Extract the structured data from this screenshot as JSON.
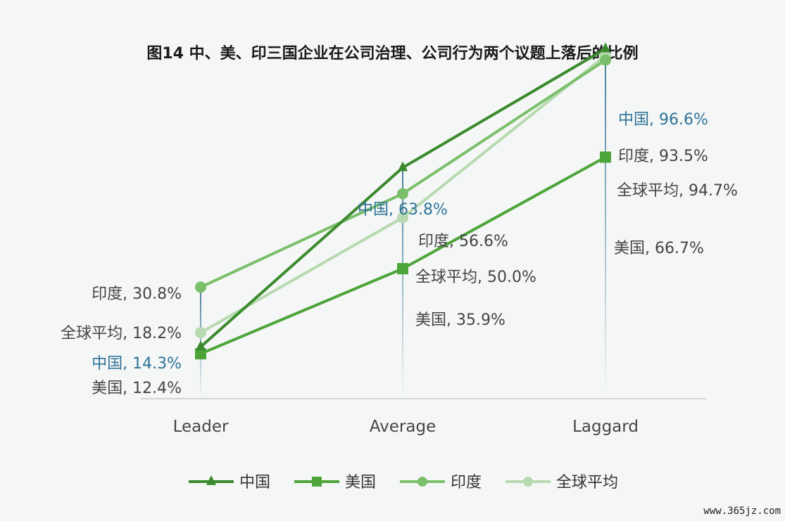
{
  "title": "图14 中、美、印三国企业在公司治理、公司行为两个议题上落后的比例",
  "watermark": "www.365jz.com",
  "chart_data": {
    "type": "line",
    "categories": [
      "Leader",
      "Average",
      "Laggard"
    ],
    "ylim": [
      0,
      100
    ],
    "grid": false,
    "legend_placement": "bottom",
    "series": [
      {
        "name": "中国",
        "values": [
          14.3,
          63.8,
          96.6
        ],
        "color": "#3b8a2e",
        "marker": "triangle",
        "labels": [
          "中国, 14.3%",
          "中国, 63.8%",
          "中国, 96.6%"
        ],
        "label_color": "#2f7396"
      },
      {
        "name": "美国",
        "values": [
          12.4,
          35.9,
          66.7
        ],
        "color": "#4da53a",
        "marker": "square",
        "labels": [
          "美国, 12.4%",
          "美国, 35.9%",
          "美国, 66.7%"
        ],
        "label_color": "#444444"
      },
      {
        "name": "印度",
        "values": [
          30.8,
          56.6,
          93.5
        ],
        "color": "#7bbf6b",
        "marker": "circle",
        "labels": [
          "印度, 30.8%",
          "印度, 56.6%",
          "印度, 93.5%"
        ],
        "label_color": "#444444"
      },
      {
        "name": "全球平均",
        "values": [
          18.2,
          50.0,
          94.7
        ],
        "color": "#b7d9b0",
        "marker": "circle",
        "labels": [
          "全球平均, 18.2%",
          "全球平均, 50.0%",
          "全球平均, 94.7%"
        ],
        "label_color": "#444444"
      }
    ]
  }
}
